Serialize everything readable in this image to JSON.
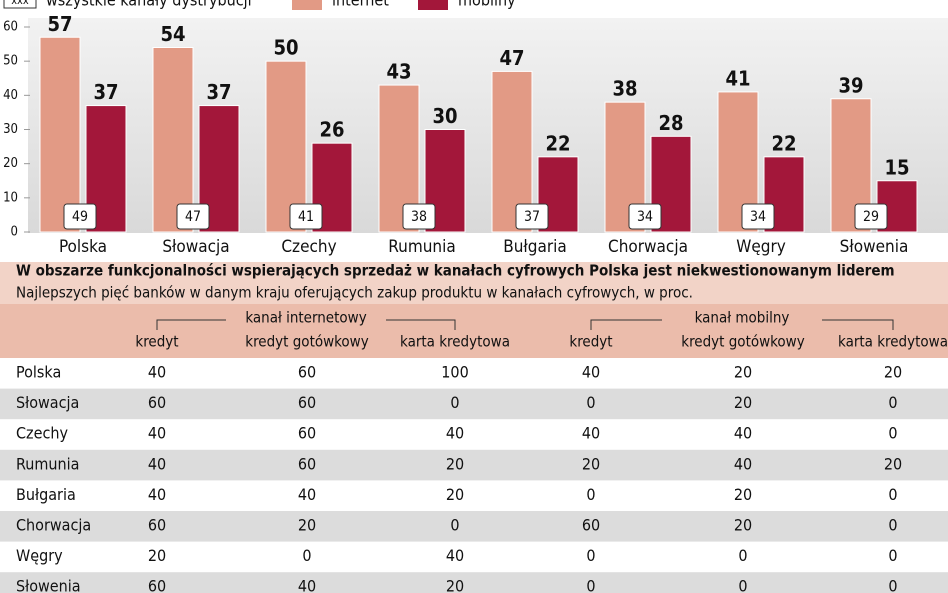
{
  "chart_data": {
    "type": "bar",
    "marker_sample": "xxx",
    "categories": [
      "Polska",
      "Słowacja",
      "Czechy",
      "Rumunia",
      "Bułgaria",
      "Chorwacja",
      "Węgry",
      "Słowenia"
    ],
    "series": [
      {
        "name": "wszystkie kanały dystrybucji",
        "color": "#ffffff",
        "values": [
          49,
          47,
          41,
          38,
          37,
          34,
          34,
          29
        ]
      },
      {
        "name": "internet",
        "color": "#e29a85",
        "values": [
          57,
          54,
          50,
          43,
          47,
          38,
          41,
          39
        ]
      },
      {
        "name": "mobilny",
        "color": "#a3173a",
        "values": [
          37,
          37,
          26,
          30,
          22,
          28,
          22,
          15
        ]
      }
    ],
    "ylim": [
      0,
      60
    ],
    "yticks": [
      0,
      10,
      20,
      30,
      40,
      50,
      60
    ]
  },
  "table": {
    "title": "W obszarze funkcjonalności wspierających sprzedaż w kanałach cyfrowych Polska jest niekwestionowanym liderem",
    "subtitle": "Najlepszych pięć banków w danym kraju oferujących zakup produktu w kanałach cyfrowych, w proc.",
    "groups": [
      "kanał internetowy",
      "kanał mobilny"
    ],
    "columns": [
      "kredyt",
      "kredyt gotówkowy",
      "karta kredytowa",
      "kredyt",
      "kredyt gotówkowy",
      "karta kredytowa"
    ],
    "rows": [
      [
        "Polska",
        40,
        60,
        100,
        40,
        20,
        20
      ],
      [
        "Słowacja",
        60,
        60,
        0,
        0,
        20,
        0
      ],
      [
        "Czechy",
        40,
        60,
        40,
        40,
        40,
        0
      ],
      [
        "Rumunia",
        40,
        60,
        20,
        20,
        40,
        20
      ],
      [
        "Bułgaria",
        40,
        40,
        20,
        0,
        20,
        0
      ],
      [
        "Chorwacja",
        60,
        20,
        0,
        60,
        20,
        0
      ],
      [
        "Węgry",
        20,
        0,
        40,
        0,
        0,
        0
      ],
      [
        "Słowenia",
        60,
        40,
        20,
        0,
        0,
        0
      ]
    ]
  }
}
